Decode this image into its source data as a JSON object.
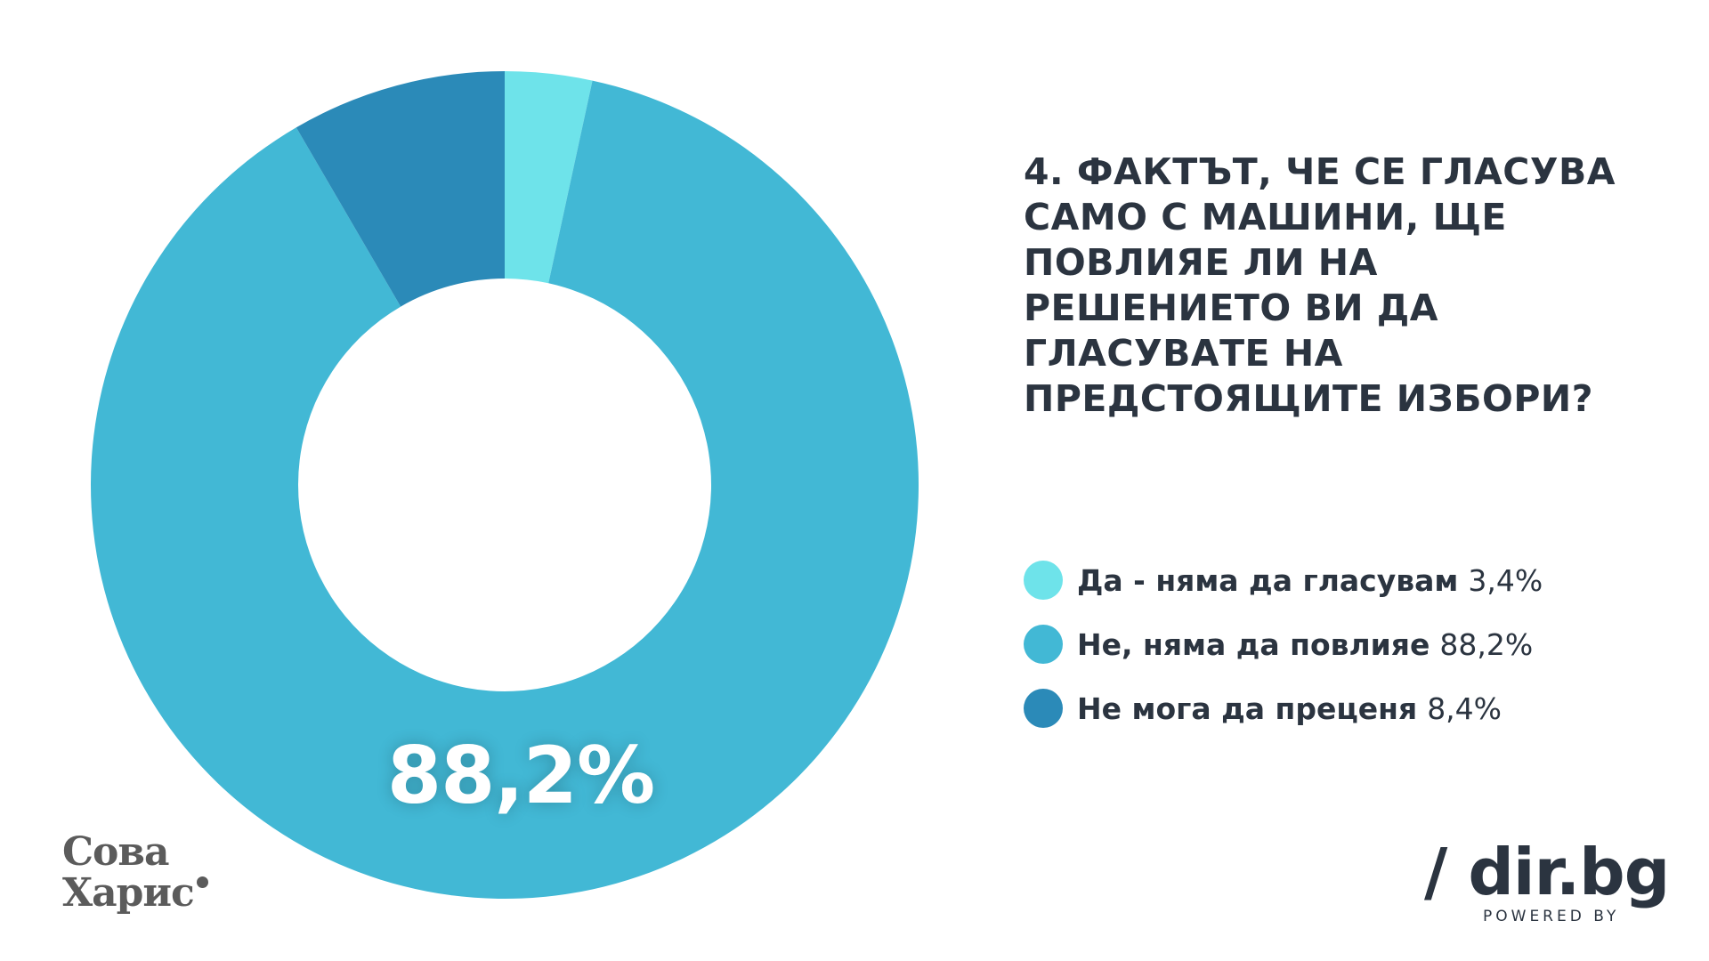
{
  "chart_data": {
    "type": "pie",
    "title": "4. ФАКТЪТ, ЧЕ СЕ ГЛАСУВА САМО С МАШИНИ, ЩЕ ПОВЛИЯЕ ЛИ НА РЕШЕНИЕТО ВИ ДА ГЛАСУВАТЕ НА ПРЕДСТОЯЩИТЕ ИЗБОРИ?",
    "donut": true,
    "start_angle_deg": 0,
    "direction": "clockwise",
    "highlight_label": "88,2%",
    "slices": [
      {
        "label": "Да - няма да гласувам",
        "value": 3.4,
        "value_text": "3,4%",
        "color": "#6ee3ea"
      },
      {
        "label": "Не, няма да повлияе",
        "value": 88.2,
        "value_text": "88,2%",
        "color": "#42b8d5"
      },
      {
        "label": "Не мога да преценя",
        "value": 8.4,
        "value_text": "8,4%",
        "color": "#2b8ab8"
      }
    ],
    "legend_position": "right"
  },
  "logos": {
    "left_line1": "Сова",
    "left_line2": "Харис",
    "right_main": "/ dir.bg",
    "right_sub": "POWERED BY"
  },
  "colors": {
    "text": "#2b3440",
    "background": "#ffffff"
  }
}
